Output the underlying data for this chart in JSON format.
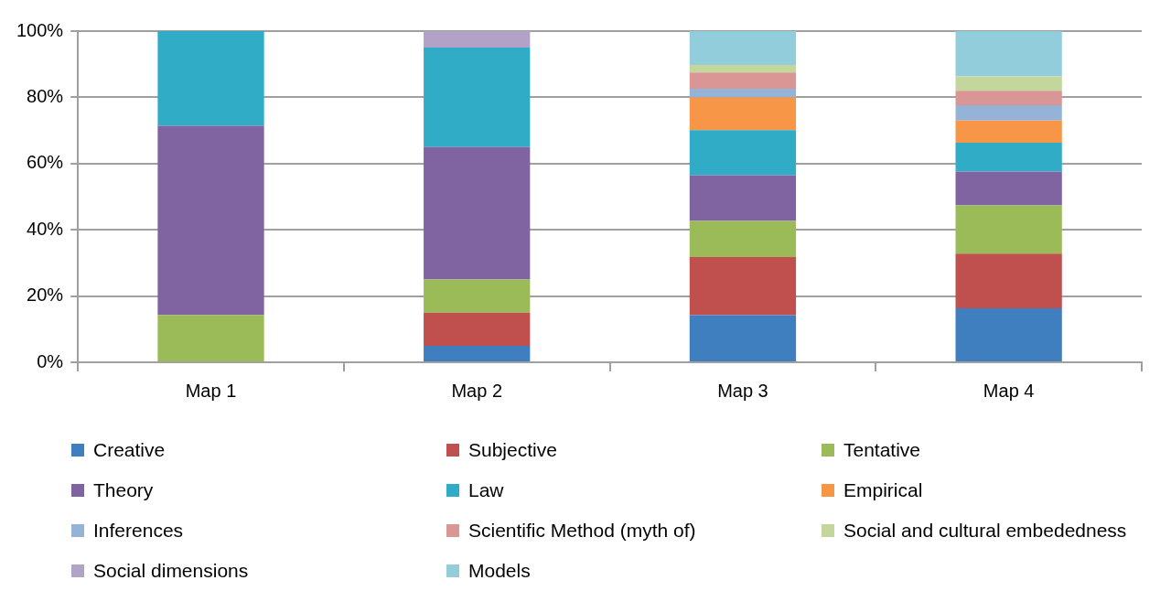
{
  "chart_data": {
    "type": "bar",
    "stacked": true,
    "categories": [
      "Map 1",
      "Map 2",
      "Map 3",
      "Map 4"
    ],
    "ylim": [
      0,
      100
    ],
    "yticks": [
      {
        "value": 0,
        "label": "0%"
      },
      {
        "value": 20,
        "label": "20%"
      },
      {
        "value": 40,
        "label": "40%"
      },
      {
        "value": 60,
        "label": "60%"
      },
      {
        "value": 80,
        "label": "80%"
      },
      {
        "value": 100,
        "label": "100%"
      }
    ],
    "grid": "y",
    "legend": "bottom",
    "series": [
      {
        "name": "Creative",
        "color": "#3f7fc0",
        "values": [
          0,
          5,
          14.2,
          16.3
        ]
      },
      {
        "name": "Subjective",
        "color": "#c0504d",
        "values": [
          0,
          10,
          17.6,
          16.5
        ]
      },
      {
        "name": "Tentative",
        "color": "#9bbb59",
        "values": [
          14.3,
          10,
          10.9,
          14.6
        ]
      },
      {
        "name": "Theory",
        "color": "#8064a2",
        "values": [
          57.1,
          40,
          13.8,
          10.2
        ]
      },
      {
        "name": "Law",
        "color": "#31acc6",
        "values": [
          28.6,
          30,
          13.6,
          8.7
        ]
      },
      {
        "name": "Empirical",
        "color": "#f79646",
        "values": [
          0,
          0,
          9.9,
          6.7
        ]
      },
      {
        "name": "Inferences",
        "color": "#95b3d7",
        "values": [
          0,
          0,
          2.6,
          4.6
        ]
      },
      {
        "name": "Scientific Method (myth of)",
        "color": "#d99694",
        "values": [
          0,
          0,
          4.9,
          4.4
        ]
      },
      {
        "name": "Social and cultural embededness",
        "color": "#c3d69b",
        "values": [
          0,
          0,
          2.3,
          4.3
        ]
      },
      {
        "name": "Social dimensions",
        "color": "#b2a2c7",
        "values": [
          0,
          5,
          0,
          0
        ]
      },
      {
        "name": "Models",
        "color": "#92cddc",
        "values": [
          0,
          0,
          10.2,
          13.7
        ]
      }
    ]
  }
}
